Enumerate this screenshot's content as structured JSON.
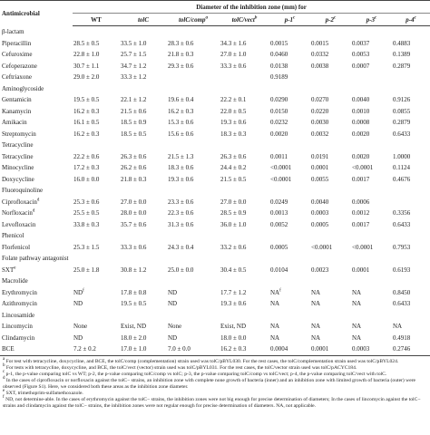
{
  "table": {
    "header": {
      "first": "Antimicrobial",
      "span": "Diameter of the inhibition zone (mm) for",
      "columns": [
        {
          "text": "WT",
          "italic": false
        },
        {
          "text": "tolC",
          "italic": true
        },
        {
          "text": "tolC/comp",
          "italic": true,
          "sup": "a"
        },
        {
          "text": "tolC/vect",
          "italic": true,
          "sup": "b"
        },
        {
          "text": "p-1",
          "italic": true,
          "sup": "c"
        },
        {
          "text": "p-2",
          "italic": true,
          "sup": "c"
        },
        {
          "text": "p-3",
          "italic": true,
          "sup": "c"
        },
        {
          "text": "p-4",
          "italic": true,
          "sup": "c"
        }
      ]
    },
    "rows": [
      {
        "group": "β-lactam"
      },
      {
        "cells": [
          "Piperacillin",
          "28.5 ± 0.5",
          "33.5 ± 1.0",
          "28.3 ± 0.6",
          "34.3 ± 1.6",
          "0.0015",
          "0.0015",
          "0.0037",
          "0.4883"
        ]
      },
      {
        "cells": [
          "Cefuroxime",
          "22.8 ± 1.0",
          "25.7 ± 1.5",
          "21.8 ± 0.3",
          "27.0 ± 1.0",
          "0.0460",
          "0.0332",
          "0.0053",
          "0.1389"
        ]
      },
      {
        "cells": [
          "Cefoperazone",
          "30.7 ± 1.1",
          "34.7 ± 1.2",
          "29.3 ± 0.6",
          "33.3 ± 0.6",
          "0.0138",
          "0.0038",
          "0.0007",
          "0.2879"
        ]
      },
      {
        "cells": [
          "Ceftriaxone",
          "29.0 ± 2.0",
          "33.3 ± 1.2",
          null,
          null,
          "0.9189",
          null,
          null,
          null
        ]
      },
      {
        "group": "Aminoglycoside"
      },
      {
        "cells": [
          "Gentamicin",
          "19.5 ± 0.5",
          "22.1 ± 1.2",
          "19.6 ± 0.4",
          "22.2 ± 0.1",
          "0.0290",
          "0.0270",
          "0.0040",
          "0.9126"
        ]
      },
      {
        "cells": [
          "Kanamycin",
          "16.2 ± 0.3",
          "21.5 ± 0.6",
          "16.2 ± 0.3",
          "22.0 ± 0.5",
          "0.0150",
          "0.0220",
          "0.0010",
          "0.0855"
        ]
      },
      {
        "cells": [
          "Amikacin",
          "16.1 ± 0.5",
          "18.5 ± 0.9",
          "15.3 ± 0.6",
          "19.3 ± 0.6",
          "0.0232",
          "0.0030",
          "0.0008",
          "0.2879"
        ]
      },
      {
        "cells": [
          "Streptomycin",
          "16.2 ± 0.3",
          "18.5 ± 0.5",
          "15.6 ± 0.6",
          "18.3 ± 0.3",
          "0.0020",
          "0.0032",
          "0.0020",
          "0.6433"
        ]
      },
      {
        "group": "Tetracycline"
      },
      {
        "cells": [
          "Tetracycline",
          "22.2 ± 0.6",
          "26.3 ± 0.6",
          "21.5 ± 1.3",
          "26.3 ± 0.6",
          "0.0011",
          "0.0191",
          "0.0020",
          "1.0000"
        ]
      },
      {
        "cells": [
          "Minocycline",
          "17.2 ± 0.3",
          "26.2 ± 0.6",
          "18.3 ± 0.6",
          "24.4 ± 0.2",
          "<0.0001",
          "0.0001",
          "<0.0001",
          "0.1124"
        ]
      },
      {
        "cells": [
          "Doxycycline",
          "16.0 ± 0.0",
          "21.8 ± 0.3",
          "19.3 ± 0.6",
          "21.5 ± 0.5",
          "<0.0001",
          "0.0055",
          "0.0017",
          "0.4676"
        ]
      },
      {
        "group": "Fluoroquinoline"
      },
      {
        "cells": [
          {
            "text": "Ciprofloxacin",
            "sup": "d"
          },
          "25.3 ± 0.6",
          "27.0 ± 0.0",
          "23.3 ± 0.6",
          "27.0 ± 0.0",
          "0.0249",
          "0.0040",
          "0.0006",
          null
        ]
      },
      {
        "cells": [
          {
            "text": "Norfloxacin",
            "sup": "d"
          },
          "25.5 ± 0.5",
          "28.0 ± 0.0",
          "22.3 ± 0.6",
          "28.5 ± 0.9",
          "0.0013",
          "0.0003",
          "0.0012",
          "0.3356"
        ]
      },
      {
        "cells": [
          "Levofloxacin",
          "33.8 ± 0.3",
          "35.7 ± 0.6",
          "31.3 ± 0.6",
          "36.0 ± 1.0",
          "0.0052",
          "0.0005",
          "0.0017",
          "0.6433"
        ]
      },
      {
        "group": "Phenicol"
      },
      {
        "cells": [
          "Florfenicol",
          "25.3 ± 1.5",
          "33.3 ± 0.6",
          "24.3 ± 0.4",
          "33.2 ± 0.6",
          "0.0005",
          "<0.0001",
          "<0.0001",
          "0.7953"
        ]
      },
      {
        "group": "Folate pathway antagonist"
      },
      {
        "cells": [
          {
            "text": "SXT",
            "sup": "e"
          },
          "25.0 ± 1.8",
          "30.8 ± 1.2",
          "25.0 ± 0.0",
          "30.4 ± 0.5",
          "0.0104",
          "0.0023",
          "0.0001",
          "0.6193"
        ]
      },
      {
        "group": "Macrolide"
      },
      {
        "cells": [
          "Erythromycin",
          {
            "text": "ND",
            "sup": "f"
          },
          "17.8 ± 0.8",
          "ND",
          "17.7 ± 1.2",
          {
            "text": "NA",
            "sup": "f"
          },
          "NA",
          "NA",
          "0.8450"
        ]
      },
      {
        "cells": [
          "Azithromycin",
          "ND",
          "19.5 ± 0.5",
          "ND",
          "19.3 ± 0.6",
          "NA",
          "NA",
          "NA",
          "0.6433"
        ]
      },
      {
        "group": "Lincosamide"
      },
      {
        "cells": [
          "Lincomycin",
          "None",
          "Exist, ND",
          "None",
          "Exist, ND",
          "NA",
          "NA",
          "NA",
          "NA"
        ]
      },
      {
        "cells": [
          "Clindamycin",
          "ND",
          "18.0 ± 2.0",
          "ND",
          "18.0 ± 0.0",
          "NA",
          "NA",
          "NA",
          "0.4918"
        ]
      },
      {
        "cells": [
          "BCE",
          "7.2 ± 0.2",
          "17.0 ± 1.0",
          "7.0 ± 0.0",
          "16.2 ± 0.3",
          "0.0004",
          "0.0001",
          "0.0003",
          "0.2746"
        ]
      }
    ]
  },
  "footnotes": [
    {
      "mark": "a",
      "text": "For test with tetracycline, doxycycline, and BCE, the tolC/comp (complementation) strain used was tolC/pBYL030. For the rest cases, the tolC/complementation strain used was tolC/pBYL024."
    },
    {
      "mark": "b",
      "text": "For tests with tetracycline, doxycycline, and BCE, the tolC/vect (vector) strain used was tolC/pBYL031. For the rest cases, the tolC/vector strain used was tolC/pACYC184."
    },
    {
      "mark": "c",
      "text": "p-1, the p-value comparing tolC vs WT; p-2, the p-value comparing tolC/comp vs tolC; p-3, the p-value comparing tolC/comp vs tolC/vect; p-4, the p-value comparing tolC/vect with tolC."
    },
    {
      "mark": "d",
      "text": "In the cases of ciprofloxacin or norfloxacin against the tolC− strains, an inhibition zone with complete none growth of bacteria (inner) and an inhibition zone with limited growth of bacteria (outer) were observed (Figure S1). Here, we considered both these areas as the inhibition zone diameter."
    },
    {
      "mark": "e",
      "text": "SXT, trimethoprim-sulfamethoxazole."
    },
    {
      "mark": "f",
      "text": "ND, not determine-able. In the cases of erythromycin against the tolC− strains, the inhibition zones were not big enough for precise determination of diameters; In the cases of lincomycin against the tolC− strains and clindamycin against the tolC− strains, the inhibition zones were not regular enough for precise determination of diameters. NA, not applicable."
    }
  ]
}
